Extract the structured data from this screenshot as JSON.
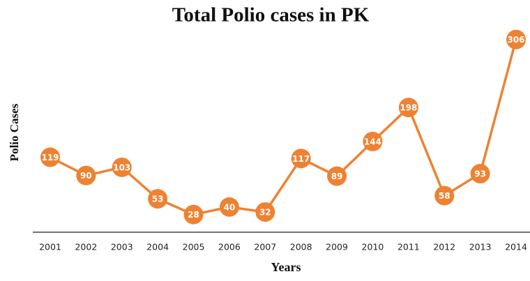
{
  "chart_data": {
    "type": "line",
    "title": "Total Polio cases in PK",
    "x_label": "Years",
    "y_label": "Polio Cases",
    "x": [
      2001,
      2002,
      2003,
      2004,
      2005,
      2006,
      2007,
      2008,
      2009,
      2010,
      2011,
      2012,
      2013,
      2014
    ],
    "values": [
      119,
      90,
      103,
      53,
      28,
      40,
      32,
      117,
      89,
      144,
      198,
      58,
      93,
      306
    ],
    "color": "#ee8232",
    "xlim": [
      2001,
      2014
    ],
    "xticks": [
      2001,
      2002,
      2003,
      2004,
      2005,
      2006,
      2007,
      2008,
      2009,
      2010,
      2011,
      2012,
      2013,
      2014
    ],
    "ylim": [
      0,
      320
    ]
  }
}
